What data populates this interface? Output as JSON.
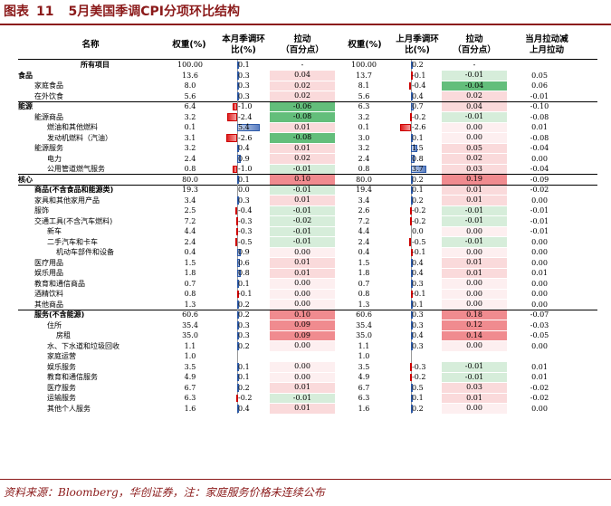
{
  "title": {
    "label": "图表",
    "num": "11",
    "text": "5月美国季调CPI分项环比结构"
  },
  "headers": {
    "name": "名称",
    "w1": "权重(%)",
    "c1": [
      "本月季调环",
      "比(%)"
    ],
    "p1": [
      "拉动",
      "（百分点）"
    ],
    "w2": "权重(%)",
    "c2": [
      "上月季调环",
      "比(%)"
    ],
    "p2": [
      "拉动",
      "（百分点）"
    ],
    "diff": [
      "当月拉动减",
      "上月拉动"
    ]
  },
  "colors": {
    "title": "#8b1a1a",
    "bar_pos": "#5b7fc2",
    "bar_neg": "#e02020",
    "pull_pos_strong": "#f08b8f",
    "pull_pos_light": "#fadadb",
    "pull_neg_strong": "#63be7b",
    "pull_neg_light": "#d6edda"
  },
  "rows": [
    {
      "name": "所有项目",
      "level": 0,
      "bold": true,
      "center": true,
      "w1": "100.00",
      "c1": "0.1",
      "p1": "-",
      "w2": "100.00",
      "c2": "0.2",
      "p2": "-",
      "diff": ""
    },
    {
      "name": "食品",
      "level": 0,
      "bold": true,
      "w1": "13.6",
      "c1": "0.3",
      "p1": "0.04",
      "w2": "13.7",
      "c2": "-0.1",
      "p2": "-0.01",
      "diff": "0.05"
    },
    {
      "name": "家庭食品",
      "level": 1,
      "w1": "8.0",
      "c1": "0.3",
      "p1": "0.02",
      "w2": "8.1",
      "c2": "-0.4",
      "p2": "-0.04",
      "diff": "0.06"
    },
    {
      "name": "在外饮食",
      "level": 1,
      "w1": "5.6",
      "c1": "0.3",
      "p1": "0.02",
      "w2": "5.6",
      "c2": "0.4",
      "p2": "0.02",
      "diff": "-0.01"
    },
    {
      "name": "能源",
      "level": 0,
      "bold": true,
      "sep": true,
      "w1": "6.4",
      "c1": "-1.0",
      "p1": "-0.06",
      "w2": "6.3",
      "c2": "0.7",
      "p2": "0.04",
      "diff": "-0.10"
    },
    {
      "name": "能源商品",
      "level": 1,
      "w1": "3.2",
      "c1": "-2.4",
      "p1": "-0.08",
      "w2": "3.2",
      "c2": "-0.2",
      "p2": "-0.01",
      "diff": "-0.08"
    },
    {
      "name": "燃油和其他燃料",
      "level": 2,
      "w1": "0.1",
      "c1": "5.4",
      "p1": "0.01",
      "w2": "0.1",
      "c2": "-2.6",
      "p2": "0.00",
      "diff": "0.01"
    },
    {
      "name": "发动机燃料（汽油）",
      "level": 2,
      "w1": "3.1",
      "c1": "-2.6",
      "p1": "-0.08",
      "w2": "3.0",
      "c2": "0.1",
      "p2": "0.00",
      "diff": "-0.08"
    },
    {
      "name": "能源服务",
      "level": 1,
      "w1": "3.2",
      "c1": "0.4",
      "p1": "0.01",
      "w2": "3.2",
      "c2": "1.5",
      "p2": "0.05",
      "diff": "-0.04"
    },
    {
      "name": "电力",
      "level": 2,
      "w1": "2.4",
      "c1": "0.9",
      "p1": "0.02",
      "w2": "2.4",
      "c2": "0.8",
      "p2": "0.02",
      "diff": "0.00"
    },
    {
      "name": "公用管道燃气服务",
      "level": 2,
      "w1": "0.8",
      "c1": "-1.0",
      "p1": "-0.01",
      "w2": "0.8",
      "c2": "3.7",
      "p2": "0.03",
      "diff": "-0.04"
    },
    {
      "name": "核心",
      "level": 0,
      "bold": true,
      "sep": true,
      "w1": "80.0",
      "c1": "0.1",
      "p1": "0.10",
      "w2": "80.0",
      "c2": "0.2",
      "p2": "0.19",
      "diff": "-0.09"
    },
    {
      "name": "商品(不含食品和能源类)",
      "level": 1,
      "bold": true,
      "sep": true,
      "w1": "19.3",
      "c1": "0.0",
      "p1": "-0.01",
      "w2": "19.4",
      "c2": "0.1",
      "p2": "0.01",
      "diff": "-0.02"
    },
    {
      "name": "家具和其他家用产品",
      "level": 1,
      "w1": "3.4",
      "c1": "0.3",
      "p1": "0.01",
      "w2": "3.4",
      "c2": "0.2",
      "p2": "0.01",
      "diff": "0.00"
    },
    {
      "name": "服饰",
      "level": 1,
      "w1": "2.5",
      "c1": "-0.4",
      "p1": "-0.01",
      "w2": "2.6",
      "c2": "-0.2",
      "p2": "-0.01",
      "diff": "-0.01"
    },
    {
      "name": "交通工具(不含汽车燃料)",
      "level": 1,
      "w1": "7.2",
      "c1": "-0.3",
      "p1": "-0.02",
      "w2": "7.2",
      "c2": "-0.2",
      "p2": "-0.01",
      "diff": "-0.01"
    },
    {
      "name": "新车",
      "level": 2,
      "w1": "4.4",
      "c1": "-0.3",
      "p1": "-0.01",
      "w2": "4.4",
      "c2": "0.0",
      "p2": "0.00",
      "diff": "-0.01"
    },
    {
      "name": "二手汽车和卡车",
      "level": 2,
      "w1": "2.4",
      "c1": "-0.5",
      "p1": "-0.01",
      "w2": "2.4",
      "c2": "-0.5",
      "p2": "-0.01",
      "diff": "0.00"
    },
    {
      "name": "机动车部件和设备",
      "level": 3,
      "w1": "0.4",
      "c1": "0.9",
      "p1": "0.00",
      "w2": "0.4",
      "c2": "-0.1",
      "p2": "0.00",
      "diff": "0.00"
    },
    {
      "name": "医疗用品",
      "level": 1,
      "w1": "1.5",
      "c1": "0.6",
      "p1": "0.01",
      "w2": "1.5",
      "c2": "0.4",
      "p2": "0.01",
      "diff": "0.00"
    },
    {
      "name": "娱乐用品",
      "level": 1,
      "w1": "1.8",
      "c1": "0.8",
      "p1": "0.01",
      "w2": "1.8",
      "c2": "0.4",
      "p2": "0.01",
      "diff": "0.01"
    },
    {
      "name": "教育和通信商品",
      "level": 1,
      "w1": "0.7",
      "c1": "0.1",
      "p1": "0.00",
      "w2": "0.7",
      "c2": "0.3",
      "p2": "0.00",
      "diff": "0.00"
    },
    {
      "name": "酒精饮料",
      "level": 1,
      "w1": "0.8",
      "c1": "-0.1",
      "p1": "0.00",
      "w2": "0.8",
      "c2": "-0.1",
      "p2": "0.00",
      "diff": "0.00"
    },
    {
      "name": "其他商品",
      "level": 1,
      "w1": "1.3",
      "c1": "0.2",
      "p1": "0.00",
      "w2": "1.3",
      "c2": "0.1",
      "p2": "0.00",
      "diff": "0.00"
    },
    {
      "name": "服务(不含能源)",
      "level": 1,
      "bold": true,
      "sep": true,
      "w1": "60.6",
      "c1": "0.2",
      "p1": "0.10",
      "w2": "60.6",
      "c2": "0.3",
      "p2": "0.18",
      "diff": "-0.07"
    },
    {
      "name": "住所",
      "level": 2,
      "w1": "35.4",
      "c1": "0.3",
      "p1": "0.09",
      "w2": "35.4",
      "c2": "0.3",
      "p2": "0.12",
      "diff": "-0.03"
    },
    {
      "name": "房租",
      "level": 3,
      "w1": "35.0",
      "c1": "0.3",
      "p1": "0.09",
      "w2": "35.0",
      "c2": "0.4",
      "p2": "0.14",
      "diff": "-0.05"
    },
    {
      "name": "水、下水道和垃圾回收",
      "level": 2,
      "w1": "1.1",
      "c1": "0.2",
      "p1": "0.00",
      "w2": "1.1",
      "c2": "0.3",
      "p2": "0.00",
      "diff": "0.00"
    },
    {
      "name": "家庭运营",
      "level": 2,
      "w1": "1.0",
      "c1": "",
      "p1": "",
      "w2": "1.0",
      "c2": "",
      "p2": "",
      "diff": ""
    },
    {
      "name": "娱乐服务",
      "level": 2,
      "w1": "3.5",
      "c1": "0.1",
      "p1": "0.00",
      "w2": "3.5",
      "c2": "-0.3",
      "p2": "-0.01",
      "diff": "0.01"
    },
    {
      "name": "教育和通信服务",
      "level": 2,
      "w1": "4.9",
      "c1": "0.1",
      "p1": "0.00",
      "w2": "4.9",
      "c2": "-0.2",
      "p2": "-0.01",
      "diff": "0.01"
    },
    {
      "name": "医疗服务",
      "level": 2,
      "w1": "6.7",
      "c1": "0.2",
      "p1": "0.01",
      "w2": "6.7",
      "c2": "0.5",
      "p2": "0.03",
      "diff": "-0.02"
    },
    {
      "name": "运输服务",
      "level": 2,
      "w1": "6.3",
      "c1": "-0.2",
      "p1": "-0.01",
      "w2": "6.3",
      "c2": "0.1",
      "p2": "0.01",
      "diff": "-0.02"
    },
    {
      "name": "其他个人服务",
      "level": 2,
      "w1": "1.6",
      "c1": "0.4",
      "p1": "0.01",
      "w2": "1.6",
      "c2": "0.2",
      "p2": "0.00",
      "diff": "0.00"
    }
  ],
  "source": "资料来源：Bloomberg，华创证券，注：家庭服务价格未连续公布"
}
